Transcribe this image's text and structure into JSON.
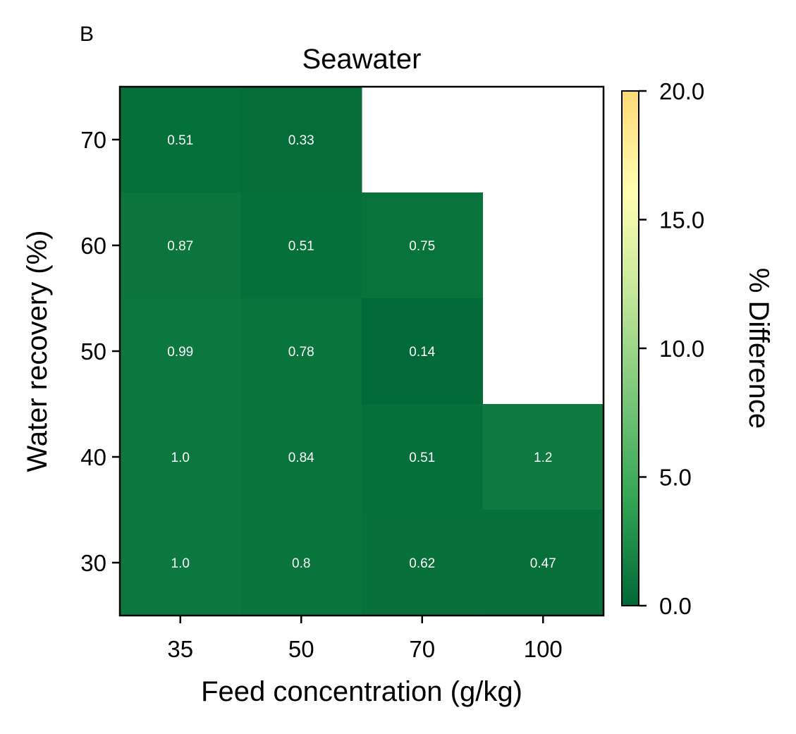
{
  "chart_data": {
    "type": "heatmap",
    "panel_label": "B",
    "title": "Seawater",
    "xlabel": "Feed concentration (g/kg)",
    "ylabel": "Water recovery (%)",
    "x_categories": [
      "35",
      "50",
      "70",
      "100"
    ],
    "y_categories": [
      "70",
      "60",
      "50",
      "40",
      "30"
    ],
    "values": [
      [
        0.51,
        0.33,
        null,
        null
      ],
      [
        0.87,
        0.51,
        0.75,
        null
      ],
      [
        0.99,
        0.78,
        0.14,
        null
      ],
      [
        1.0,
        0.84,
        0.51,
        1.2
      ],
      [
        1.0,
        0.8,
        0.62,
        0.47
      ]
    ],
    "cell_labels": [
      [
        "0.51",
        "0.33",
        "",
        ""
      ],
      [
        "0.87",
        "0.51",
        "0.75",
        ""
      ],
      [
        "0.99",
        "0.78",
        "0.14",
        ""
      ],
      [
        "1.0",
        "0.84",
        "0.51",
        "1.2"
      ],
      [
        "1.0",
        "0.8",
        "0.62",
        "0.47"
      ]
    ],
    "colorbar": {
      "label": "% Difference",
      "range": [
        0,
        20
      ],
      "ticks": [
        0,
        5,
        10,
        15,
        20
      ],
      "tick_labels": [
        "0.0",
        "5.0",
        "10.0",
        "15.0",
        "20.0"
      ],
      "colormap": [
        "#006837",
        "#31a354",
        "#78c679",
        "#c2e699",
        "#ffffb2",
        "#fed976"
      ]
    },
    "grid": false
  }
}
